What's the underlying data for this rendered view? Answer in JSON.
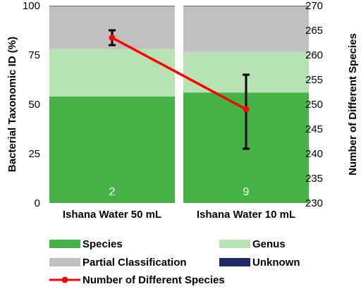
{
  "chart_data": {
    "type": "bar",
    "stacked": true,
    "categories": [
      "Ishana Water 50 mL",
      "Ishana Water 10 mL"
    ],
    "series": [
      {
        "name": "Species",
        "values": [
          54,
          56
        ],
        "color": "#46b347"
      },
      {
        "name": "Genus",
        "values": [
          24,
          20.5
        ],
        "color": "#b9e2b4"
      },
      {
        "name": "Partial Classification",
        "values": [
          21.8,
          23.3
        ],
        "color": "#c0c0c0"
      },
      {
        "name": "Unknown",
        "values": [
          0.2,
          0.2
        ],
        "color": "#1f2a6b"
      }
    ],
    "line_series": {
      "name": "Number of Different Species",
      "axis": "right",
      "values": [
        263.5,
        249
      ],
      "error_low": [
        262,
        241
      ],
      "error_high": [
        265,
        256
      ],
      "color": "#ff0000"
    },
    "bar_annotations": [
      "2",
      "9"
    ],
    "ylabel": "Bacterial Taxonomic ID (%)",
    "y2label": "Number of Different Species",
    "ylim": [
      0,
      100
    ],
    "y2lim": [
      230,
      270
    ],
    "yticks": [
      "0",
      "25",
      "50",
      "75",
      "100"
    ],
    "y2ticks": [
      "230",
      "235",
      "240",
      "245",
      "250",
      "255",
      "260",
      "265",
      "270"
    ],
    "grid": false,
    "legend_position": "bottom"
  }
}
